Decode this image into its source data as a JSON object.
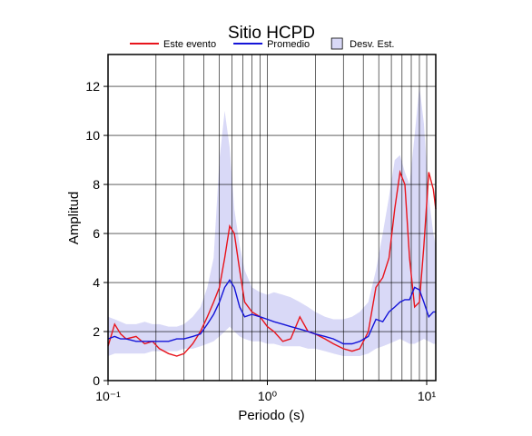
{
  "chart_data": {
    "type": "line",
    "title": "Sitio HCPD",
    "x_label": "Periodo (s)",
    "y_label": "Amplitud",
    "log_x": true,
    "grid": true,
    "xlim": [
      0.1,
      11.4
    ],
    "ylim": [
      0,
      13.3
    ],
    "xticks": [
      {
        "value": 0.1,
        "label": "10⁻¹"
      },
      {
        "value": 1,
        "label": "10⁰"
      },
      {
        "value": 10,
        "label": "10¹"
      }
    ],
    "xgrid": [
      0.1,
      0.2,
      0.3,
      0.4,
      0.5,
      0.6,
      0.7,
      0.8,
      0.9,
      1,
      2,
      3,
      4,
      5,
      6,
      7,
      8,
      9,
      10
    ],
    "yticks": [
      0,
      2,
      4,
      6,
      8,
      10,
      12
    ],
    "x": [
      0.1,
      0.11,
      0.12,
      0.13,
      0.15,
      0.17,
      0.19,
      0.21,
      0.24,
      0.27,
      0.3,
      0.34,
      0.38,
      0.42,
      0.46,
      0.5,
      0.54,
      0.58,
      0.62,
      0.67,
      0.72,
      0.8,
      0.9,
      1.0,
      1.1,
      1.25,
      1.4,
      1.6,
      1.8,
      2.0,
      2.3,
      2.6,
      3.0,
      3.4,
      3.8,
      4.3,
      4.8,
      5.3,
      5.8,
      6.3,
      6.8,
      7.3,
      7.8,
      8.4,
      9.0,
      9.6,
      10.3,
      11,
      11.4
    ],
    "band": {
      "name": "Desv. Est.",
      "color": "#d9d9f7",
      "upper": [
        2.6,
        2.5,
        2.4,
        2.3,
        2.3,
        2.4,
        2.3,
        2.3,
        2.2,
        2.2,
        2.3,
        2.6,
        3.0,
        3.8,
        5.0,
        9.0,
        11.0,
        9.5,
        7.0,
        5.5,
        4.5,
        3.8,
        3.6,
        3.5,
        3.6,
        3.5,
        3.4,
        3.2,
        3.0,
        2.8,
        2.6,
        2.5,
        2.5,
        2.6,
        2.8,
        3.2,
        4.5,
        6.0,
        7.5,
        9.0,
        9.2,
        8.5,
        8.0,
        10.0,
        12.0,
        10.5,
        7.5,
        6.0,
        5.5
      ],
      "lower": [
        1.0,
        1.1,
        1.1,
        1.1,
        1.1,
        1.1,
        1.2,
        1.2,
        1.2,
        1.2,
        1.3,
        1.3,
        1.4,
        1.5,
        1.6,
        1.8,
        2.0,
        2.2,
        2.0,
        1.8,
        1.7,
        1.6,
        1.6,
        1.5,
        1.5,
        1.4,
        1.4,
        1.4,
        1.3,
        1.3,
        1.2,
        1.1,
        1.0,
        1.0,
        1.0,
        1.1,
        1.3,
        1.4,
        1.5,
        1.6,
        1.7,
        1.6,
        1.5,
        1.5,
        1.6,
        1.7,
        1.6,
        1.5,
        1.5
      ]
    },
    "series": [
      {
        "name": "Este evento",
        "color": "#e8141c",
        "values": [
          1.4,
          2.3,
          1.9,
          1.7,
          1.8,
          1.5,
          1.6,
          1.3,
          1.1,
          1.0,
          1.1,
          1.5,
          2.0,
          2.6,
          3.2,
          3.8,
          5.0,
          6.3,
          6.0,
          4.5,
          3.2,
          2.8,
          2.6,
          2.2,
          2.0,
          1.6,
          1.7,
          2.6,
          2.0,
          1.9,
          1.7,
          1.5,
          1.3,
          1.2,
          1.3,
          2.0,
          3.8,
          4.2,
          5.0,
          7.0,
          8.5,
          8.0,
          5.0,
          3.0,
          3.2,
          5.5,
          8.5,
          7.8,
          7.0
        ]
      },
      {
        "name": "Promedio",
        "color": "#1414d8",
        "values": [
          1.7,
          1.8,
          1.7,
          1.7,
          1.6,
          1.6,
          1.6,
          1.6,
          1.6,
          1.7,
          1.7,
          1.8,
          1.9,
          2.3,
          2.7,
          3.2,
          3.8,
          4.1,
          3.8,
          3.0,
          2.6,
          2.7,
          2.6,
          2.5,
          2.4,
          2.3,
          2.2,
          2.1,
          2.0,
          1.9,
          1.8,
          1.7,
          1.5,
          1.5,
          1.6,
          1.8,
          2.5,
          2.4,
          2.8,
          3.0,
          3.2,
          3.3,
          3.3,
          3.8,
          3.7,
          3.2,
          2.6,
          2.8,
          2.8
        ]
      }
    ]
  }
}
